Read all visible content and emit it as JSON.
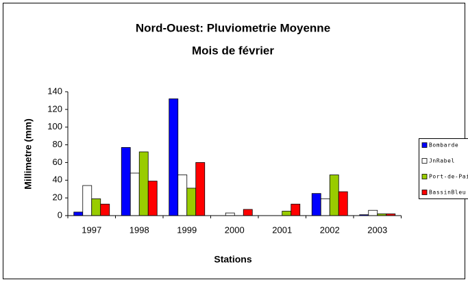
{
  "chart_data": {
    "type": "bar",
    "title": "Nord-Ouest: Pluviometrie Moyenne",
    "subtitle": "Mois de février",
    "x_label": "Stations",
    "y_label": "Millimetre (mm)",
    "categories": [
      "1997",
      "1998",
      "1999",
      "2000",
      "2001",
      "2002",
      "2003"
    ],
    "series": [
      {
        "name": "Bombarde",
        "color": "#0000ff",
        "values": [
          4,
          77,
          132,
          0,
          0,
          25,
          1
        ]
      },
      {
        "name": "JnRabel",
        "color": "#ffffff",
        "values": [
          34,
          48,
          46,
          3,
          0,
          19,
          6
        ]
      },
      {
        "name": "Port-de-Paix",
        "color": "#99cc00",
        "values": [
          19,
          72,
          31,
          0,
          5,
          46,
          2
        ]
      },
      {
        "name": "BassinBleu",
        "color": "#ff0000",
        "values": [
          13,
          39,
          60,
          7,
          13,
          27,
          2
        ]
      }
    ],
    "ylim": [
      0,
      140
    ],
    "yticks": [
      0,
      20,
      40,
      60,
      80,
      100,
      120,
      140
    ],
    "grid": false,
    "legend": "right"
  }
}
